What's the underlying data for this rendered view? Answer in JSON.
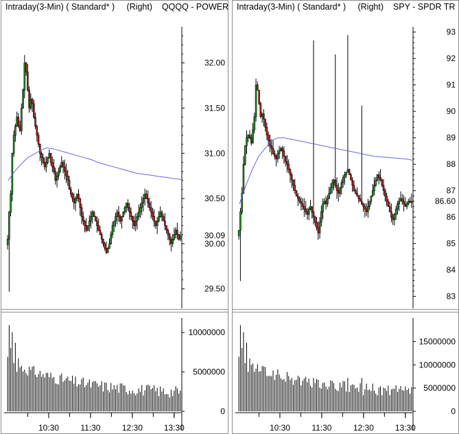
{
  "panels": [
    {
      "timeframe": "Intraday(3-Min)",
      "style": "( Standard* )",
      "axis_side": "(Right)",
      "symbol": "QQQQ - POWER"
    },
    {
      "timeframe": "Intraday(3-Min)",
      "style": "( Standard* )",
      "axis_side": "(Right)",
      "symbol": "SPY - SPDR TR"
    }
  ],
  "colors": {
    "up": "#1f9a1f",
    "down": "#d01818",
    "ma": "#6666dd",
    "volume": "#000000"
  },
  "chart_data": [
    {
      "type": "candlestick",
      "symbol": "QQQQ",
      "price_ticks": [
        "32.00",
        "31.50",
        "31.00",
        "30.50",
        "30.00",
        "29.50"
      ],
      "price_tick_values": [
        32.0,
        31.5,
        31.0,
        30.5,
        30.0,
        29.5
      ],
      "ylim": [
        29.3,
        32.4
      ],
      "last_price_label": "30.09",
      "last_price": 30.09,
      "x_ticks": [
        "10:30",
        "11:30",
        "12:30",
        "13:30"
      ],
      "x_tick_values": [
        60,
        120,
        180,
        240
      ],
      "xlim": [
        0,
        250
      ],
      "close": [
        30.05,
        30.35,
        30.55,
        31.0,
        31.2,
        31.3,
        31.4,
        31.3,
        31.25,
        31.5,
        31.7,
        32.0,
        31.9,
        31.7,
        31.5,
        31.6,
        31.55,
        31.4,
        31.3,
        31.2,
        31.1,
        31.0,
        30.95,
        30.9,
        30.85,
        30.9,
        30.95,
        31.0,
        30.9,
        30.85,
        30.8,
        30.7,
        30.75,
        30.8,
        30.85,
        30.9,
        30.85,
        30.8,
        30.75,
        30.7,
        30.6,
        30.55,
        30.5,
        30.45,
        30.5,
        30.55,
        30.5,
        30.4,
        30.3,
        30.25,
        30.2,
        30.15,
        30.2,
        30.25,
        30.3,
        30.35,
        30.3,
        30.25,
        30.2,
        30.15,
        30.1,
        30.05,
        30.0,
        29.95,
        29.9,
        29.95,
        30.0,
        30.1,
        30.2,
        30.25,
        30.3,
        30.35,
        30.3,
        30.25,
        30.3,
        30.35,
        30.4,
        30.45,
        30.4,
        30.35,
        30.3,
        30.25,
        30.2,
        30.25,
        30.3,
        30.35,
        30.4,
        30.45,
        30.5,
        30.55,
        30.5,
        30.45,
        30.4,
        30.35,
        30.3,
        30.25,
        30.2,
        30.25,
        30.3,
        30.35,
        30.3,
        30.25,
        30.2,
        30.15,
        30.1,
        30.05,
        30.0,
        30.05,
        30.1,
        30.15,
        30.1,
        30.05,
        30.09
      ],
      "ma": [
        30.7,
        30.8,
        30.88,
        30.95,
        30.99,
        31.03,
        31.06,
        31.05,
        31.03,
        31.01,
        30.99,
        30.97,
        30.95,
        30.93,
        30.9,
        30.88,
        30.86,
        30.84,
        30.82,
        30.8,
        30.78,
        30.77,
        30.76,
        30.75,
        30.74,
        30.73,
        30.72,
        30.71
      ],
      "volume_ticks": [
        "10000000",
        "5000000",
        "0"
      ],
      "volume_tick_values": [
        10000000,
        5000000,
        0
      ],
      "volume_ylim": [
        0,
        11500000
      ]
    },
    {
      "type": "candlestick",
      "symbol": "SPY",
      "price_ticks": [
        "93",
        "92",
        "91",
        "90",
        "89",
        "88",
        "87",
        "86",
        "85",
        "84",
        "83"
      ],
      "price_tick_values": [
        93,
        92,
        91,
        90,
        89,
        88,
        87,
        86,
        85,
        84,
        83
      ],
      "ylim": [
        82.6,
        93.2
      ],
      "last_price_label": "86.60",
      "last_price": 86.6,
      "x_ticks": [
        "10:30",
        "11:30",
        "12:30",
        "13:30"
      ],
      "x_tick_values": [
        60,
        120,
        180,
        240
      ],
      "xlim": [
        0,
        250
      ],
      "close": [
        85.5,
        86.2,
        86.9,
        88.0,
        88.7,
        89.0,
        89.1,
        89.0,
        88.8,
        89.3,
        89.8,
        91.0,
        90.8,
        90.3,
        89.8,
        89.9,
        89.7,
        89.4,
        89.1,
        88.9,
        88.7,
        88.6,
        88.4,
        88.3,
        88.2,
        88.4,
        88.5,
        88.6,
        88.5,
        88.3,
        88.1,
        88.0,
        87.8,
        87.6,
        87.4,
        87.2,
        87.0,
        86.8,
        86.7,
        86.6,
        86.5,
        86.4,
        86.3,
        86.2,
        86.1,
        86.3,
        86.4,
        86.2,
        86.0,
        85.8,
        85.6,
        85.4,
        85.8,
        86.2,
        86.5,
        86.6,
        86.5,
        86.7,
        86.9,
        87.1,
        87.3,
        87.4,
        87.2,
        87.0,
        86.9,
        87.1,
        87.3,
        87.5,
        87.6,
        87.7,
        87.8,
        87.6,
        87.4,
        87.2,
        87.0,
        86.9,
        86.8,
        86.7,
        86.6,
        86.5,
        86.4,
        86.3,
        86.2,
        86.4,
        86.6,
        86.8,
        87.0,
        87.2,
        87.4,
        87.6,
        87.5,
        87.4,
        87.2,
        87.0,
        86.8,
        86.6,
        86.4,
        86.2,
        86.0,
        85.9,
        86.1,
        86.3,
        86.5,
        86.6,
        86.7,
        86.6,
        86.5,
        86.4,
        86.5,
        86.6,
        86.55,
        86.6
      ],
      "ma": [
        86.5,
        87.2,
        87.8,
        88.3,
        88.6,
        88.9,
        89.0,
        89.0,
        88.95,
        88.9,
        88.85,
        88.8,
        88.75,
        88.7,
        88.65,
        88.6,
        88.55,
        88.5,
        88.45,
        88.4,
        88.35,
        88.3,
        88.28,
        88.26,
        88.24,
        88.22,
        88.2,
        88.15
      ],
      "volume_ticks": [
        "15000000",
        "10000000",
        "5000000",
        "0"
      ],
      "volume_tick_values": [
        15000000,
        10000000,
        5000000,
        0
      ],
      "volume_ylim": [
        0,
        19500000
      ]
    }
  ]
}
